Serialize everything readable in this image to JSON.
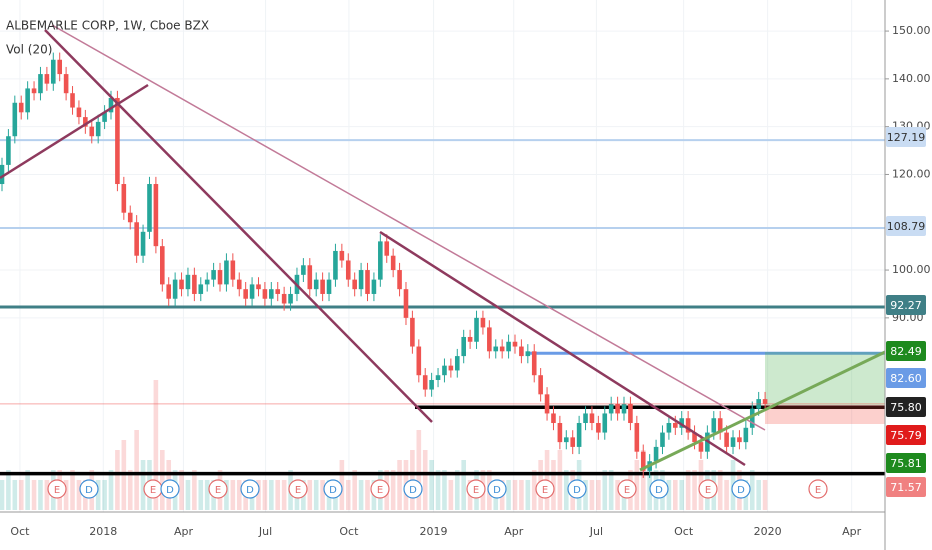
{
  "chart_data": {
    "type": "candlestick",
    "title": "ALBEMARLE CORP, 1W, Cboe BZX",
    "volume_label": "Vol (20)",
    "up_color": "#26a69a",
    "down_color": "#ef5350",
    "ohlc": [
      [
        118,
        123.5,
        116.5,
        122
      ],
      [
        122,
        129.5,
        120.5,
        128
      ],
      [
        128,
        136.5,
        126.5,
        135
      ],
      [
        135,
        136.5,
        131.5,
        133
      ],
      [
        133,
        139.5,
        131.5,
        138
      ],
      [
        138,
        139.5,
        135.5,
        137
      ],
      [
        137,
        142.5,
        135.5,
        141
      ],
      [
        141,
        142.5,
        137.5,
        139
      ],
      [
        139,
        145.5,
        137.5,
        144
      ],
      [
        144,
        145.5,
        139.5,
        141
      ],
      [
        141,
        142.5,
        135.5,
        137
      ],
      [
        137,
        138.5,
        132.5,
        134
      ],
      [
        134,
        135.5,
        130.5,
        132
      ],
      [
        132,
        133.5,
        128.5,
        130
      ],
      [
        130,
        131.5,
        126.5,
        128
      ],
      [
        128,
        132.5,
        126.5,
        131
      ],
      [
        131,
        134.5,
        129.5,
        133
      ],
      [
        133,
        137.5,
        131.5,
        136
      ],
      [
        136,
        137.5,
        116.5,
        118
      ],
      [
        118,
        119.5,
        110.5,
        112
      ],
      [
        112,
        113.5,
        108.5,
        110
      ],
      [
        110,
        111.5,
        101.5,
        103
      ],
      [
        103,
        109.5,
        101.5,
        108
      ],
      [
        108,
        119.5,
        106.5,
        118
      ],
      [
        118,
        119.5,
        103.5,
        105
      ],
      [
        105,
        106.5,
        95.5,
        97
      ],
      [
        97,
        98.5,
        92.5,
        94
      ],
      [
        94,
        99.5,
        92.5,
        98
      ],
      [
        98,
        99.5,
        94.5,
        96
      ],
      [
        96,
        100.5,
        94.5,
        99
      ],
      [
        99,
        100.5,
        93.5,
        95
      ],
      [
        95,
        98.5,
        93.5,
        97
      ],
      [
        97,
        99.5,
        95.5,
        98
      ],
      [
        98,
        101.5,
        96.5,
        100
      ],
      [
        100,
        101.5,
        95.5,
        97
      ],
      [
        97,
        103.5,
        95.5,
        102
      ],
      [
        102,
        103.5,
        96.5,
        98
      ],
      [
        98,
        99.5,
        94.5,
        96
      ],
      [
        96,
        97.5,
        92.5,
        94
      ],
      [
        94,
        98.5,
        92.5,
        97
      ],
      [
        97,
        98.5,
        94.5,
        96
      ],
      [
        96,
        97.5,
        92.5,
        94
      ],
      [
        94,
        97.5,
        92.5,
        96
      ],
      [
        96,
        97.5,
        93.5,
        95
      ],
      [
        95,
        96.5,
        91.5,
        93
      ],
      [
        93,
        96.5,
        91.5,
        95
      ],
      [
        95,
        100.5,
        93.5,
        99
      ],
      [
        99,
        102.5,
        97.5,
        101
      ],
      [
        101,
        102.5,
        94.5,
        96
      ],
      [
        96,
        99.5,
        94.5,
        98
      ],
      [
        98,
        99.5,
        93.5,
        95
      ],
      [
        95,
        99.5,
        93.5,
        98
      ],
      [
        98,
        105.5,
        96.5,
        104
      ],
      [
        104,
        105.5,
        100.5,
        102
      ],
      [
        102,
        103.5,
        96.5,
        98
      ],
      [
        98,
        99.5,
        94.5,
        96
      ],
      [
        96,
        101.5,
        94.5,
        100
      ],
      [
        100,
        101.5,
        93.5,
        95
      ],
      [
        95,
        99.5,
        93.5,
        98
      ],
      [
        98,
        107.5,
        96.5,
        106
      ],
      [
        106,
        107.5,
        101.5,
        103
      ],
      [
        103,
        104.5,
        98.5,
        100
      ],
      [
        100,
        101.5,
        94.5,
        96
      ],
      [
        96,
        97.5,
        88.5,
        90
      ],
      [
        90,
        91.5,
        82.5,
        84
      ],
      [
        84,
        85.5,
        76.5,
        78
      ],
      [
        78,
        79.5,
        73.5,
        75
      ],
      [
        75,
        78.5,
        73.5,
        77
      ],
      [
        77,
        79.5,
        75.5,
        78
      ],
      [
        78,
        81.5,
        76.5,
        80
      ],
      [
        80,
        81.5,
        77.5,
        79
      ],
      [
        79,
        83.5,
        77.5,
        82
      ],
      [
        82,
        87.5,
        80.5,
        86
      ],
      [
        86,
        87.5,
        83.5,
        85
      ],
      [
        85,
        91.5,
        83.5,
        90
      ],
      [
        90,
        91.5,
        86.5,
        88
      ],
      [
        88,
        89.5,
        81.5,
        83
      ],
      [
        83,
        85.5,
        81.5,
        84
      ],
      [
        84,
        85.5,
        81.5,
        83
      ],
      [
        83,
        86.5,
        81.5,
        85
      ],
      [
        85,
        86.5,
        82.5,
        84
      ],
      [
        84,
        85.5,
        80.5,
        82
      ],
      [
        82,
        84.5,
        80.5,
        83
      ],
      [
        83,
        84.5,
        76.5,
        78
      ],
      [
        78,
        79.5,
        72.5,
        74
      ],
      [
        74,
        75.5,
        68.5,
        70
      ],
      [
        70,
        71.5,
        66.5,
        68
      ],
      [
        68,
        69.5,
        62.5,
        64
      ],
      [
        64,
        66.5,
        62.5,
        65
      ],
      [
        65,
        66.5,
        61.5,
        63
      ],
      [
        63,
        69.5,
        61.5,
        68
      ],
      [
        68,
        71.5,
        66.5,
        70
      ],
      [
        70,
        71.5,
        66.5,
        68
      ],
      [
        68,
        69.5,
        64.5,
        66
      ],
      [
        66,
        71.5,
        64.5,
        70
      ],
      [
        70,
        73.5,
        68.5,
        72
      ],
      [
        72,
        73.5,
        68.5,
        70
      ],
      [
        70,
        73.5,
        68.5,
        72
      ],
      [
        72,
        73.5,
        66.5,
        68
      ],
      [
        68,
        69.5,
        60.5,
        62
      ],
      [
        62,
        63.5,
        56.5,
        58
      ],
      [
        58,
        61.5,
        56.5,
        60
      ],
      [
        60,
        64.5,
        58.5,
        63
      ],
      [
        63,
        67.5,
        61.5,
        66
      ],
      [
        66,
        69.5,
        64.5,
        68
      ],
      [
        68,
        69.5,
        65.5,
        67
      ],
      [
        67,
        70.5,
        65.5,
        69
      ],
      [
        69,
        70.5,
        64.5,
        66
      ],
      [
        66,
        67.5,
        62.5,
        64
      ],
      [
        64,
        65.5,
        60.5,
        62
      ],
      [
        62,
        67.5,
        60.5,
        66
      ],
      [
        66,
        70.5,
        64.5,
        69
      ],
      [
        69,
        70.5,
        64.5,
        66
      ],
      [
        66,
        67.5,
        61.5,
        63
      ],
      [
        63,
        66.5,
        61.5,
        65
      ],
      [
        65,
        66.5,
        62.5,
        64
      ],
      [
        64,
        68.5,
        62.5,
        67
      ],
      [
        67,
        72.5,
        65.5,
        71
      ],
      [
        71,
        74.5,
        69.5,
        73
      ],
      [
        73,
        74.5,
        70.5,
        72
      ]
    ],
    "volume": [
      3,
      4,
      3,
      3,
      4,
      3,
      3,
      3,
      4,
      4,
      3,
      4,
      3,
      3,
      4,
      3,
      3,
      4,
      6,
      7,
      4,
      8,
      5,
      5,
      13,
      6,
      5,
      4,
      4,
      3,
      4,
      3,
      3,
      3,
      4,
      3,
      3,
      3,
      3,
      3,
      3,
      3,
      3,
      3,
      3,
      4,
      3,
      3,
      3,
      3,
      3,
      3,
      3,
      5,
      3,
      4,
      3,
      3,
      3,
      4,
      4,
      4,
      5,
      5,
      6,
      8,
      6,
      5,
      4,
      4,
      3,
      4,
      5,
      3,
      4,
      4,
      4,
      3,
      3,
      3,
      3,
      3,
      3,
      4,
      5,
      6,
      5,
      6,
      4,
      4,
      5,
      3,
      3,
      3,
      4,
      4,
      3,
      3,
      4,
      5,
      6,
      4,
      4,
      4,
      3,
      3,
      3,
      4,
      4,
      5,
      4,
      4,
      4,
      3,
      5,
      4,
      3,
      4,
      3,
      3
    ],
    "xlim": [
      -0.31,
      137.7
    ],
    "ylim": [
      49.8,
      156.5
    ],
    "xticks": [
      {
        "value": 2.8,
        "label": "Oct"
      },
      {
        "value": 15.8,
        "label": "2018"
      },
      {
        "value": 28.3,
        "label": "Apr"
      },
      {
        "value": 41.1,
        "label": "Jul"
      },
      {
        "value": 54.1,
        "label": "Oct"
      },
      {
        "value": 67.3,
        "label": "2019"
      },
      {
        "value": 79.8,
        "label": "Apr"
      },
      {
        "value": 92.7,
        "label": "Jul"
      },
      {
        "value": 106.3,
        "label": "Oct"
      },
      {
        "value": 119.4,
        "label": "2020"
      },
      {
        "value": 132.5,
        "label": "Apr"
      }
    ],
    "yticks": [
      {
        "value": 150,
        "label": "150.00"
      },
      {
        "value": 140,
        "label": "140.00"
      },
      {
        "value": 130,
        "label": "130.00"
      },
      {
        "value": 120,
        "label": "120.00"
      },
      {
        "value": 100,
        "label": "100.00"
      },
      {
        "value": 90,
        "label": "90.00"
      }
    ],
    "hlines": [
      {
        "value": 127.19,
        "color": "#b6d0ee"
      },
      {
        "value": 108.79,
        "color": "#b6d0ee"
      },
      {
        "value": 92.27,
        "color": "#3f7f86"
      },
      {
        "value": 82.6,
        "color": "#6a9be6"
      },
      {
        "value": 71.3,
        "color": "#000000"
      },
      {
        "value": 57.4,
        "color": "#000000"
      }
    ],
    "price_badges": [
      {
        "text": "127.19",
        "color": "#c9dcf3",
        "text_color": "#333333"
      },
      {
        "text": "108.79",
        "color": "#c9dcf3",
        "text_color": "#333333"
      },
      {
        "text": "92.27",
        "color": "#3f7f86",
        "text_color": "#ffffff"
      },
      {
        "text": "82.49",
        "color": "#1e8a1e",
        "text_color": "#ffffff"
      },
      {
        "text": "82.60",
        "color": "#6a9be6",
        "text_color": "#ffffff"
      },
      {
        "text": "75.80",
        "color": "#222222",
        "text_color": "#ffffff"
      },
      {
        "text": "75.79",
        "color": "#e01b1b",
        "text_color": "#ffffff"
      },
      {
        "text": "75.81",
        "color": "#1e8a1e",
        "text_color": "#ffffff"
      },
      {
        "text": "71.57",
        "color": "#f08080",
        "text_color": "#ffffff"
      }
    ],
    "events": [
      "E",
      "D",
      "E",
      "D",
      "E",
      "D",
      "E",
      "D",
      "E",
      "D",
      "E",
      "D",
      "E",
      "D",
      "E",
      "D",
      "E",
      "D",
      "E"
    ]
  }
}
